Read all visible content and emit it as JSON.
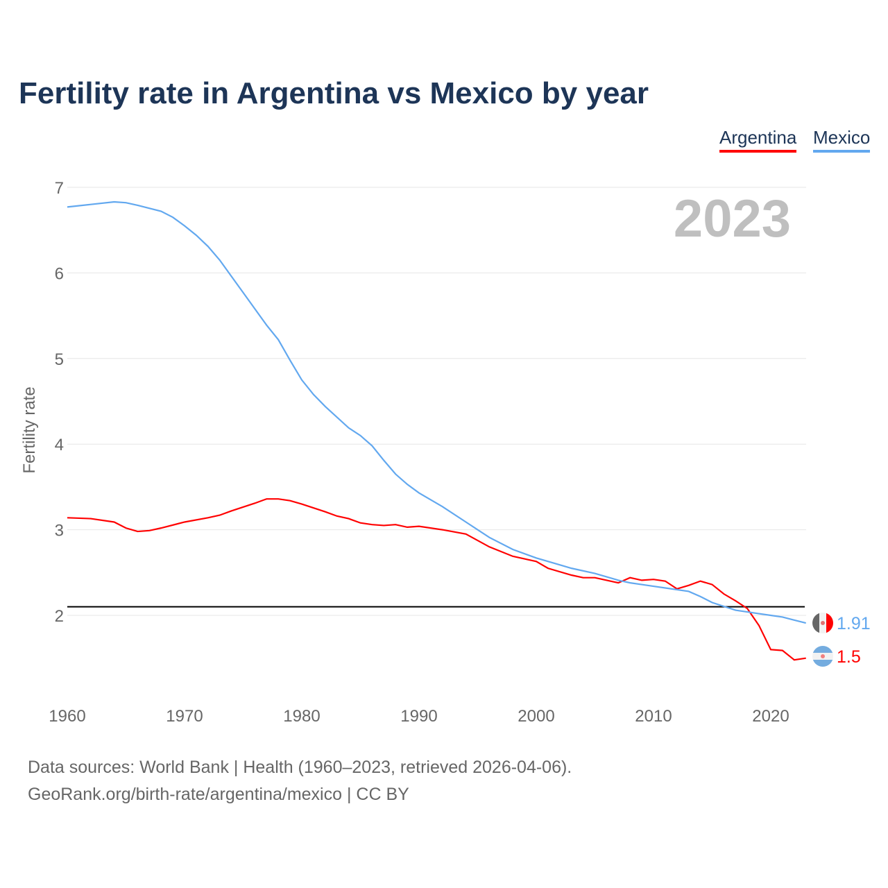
{
  "title": "Fertility rate in Argentina vs Mexico by year",
  "footer": {
    "line1": "Data sources: World Bank | Health (1960–2023, retrieved 2026-04-06).",
    "line2": "GeoRank.org/birth-rate/argentina/mexico | CC BY"
  },
  "chart_data": {
    "type": "line",
    "title": "Fertility rate in Argentina vs Mexico by year",
    "ylabel": "Fertility rate",
    "xlabel": "",
    "xlim": [
      1960,
      2023
    ],
    "ylim": [
      1,
      7
    ],
    "xticks": [
      "1960",
      "1970",
      "1980",
      "1990",
      "2000",
      "2010",
      "2020"
    ],
    "yticks": [
      "2",
      "3",
      "4",
      "5",
      "6",
      "7"
    ],
    "year_label": "2023",
    "reference_line": 2.1,
    "legend_position": "top-right",
    "series": [
      {
        "name": "Argentina",
        "color": "#ff0000",
        "end_label": "1.5",
        "flag": "argentina-flag-icon",
        "points": [
          [
            1960,
            3.14
          ],
          [
            1962,
            3.13
          ],
          [
            1964,
            3.09
          ],
          [
            1965,
            3.02
          ],
          [
            1966,
            2.98
          ],
          [
            1967,
            2.99
          ],
          [
            1968,
            3.02
          ],
          [
            1970,
            3.09
          ],
          [
            1972,
            3.14
          ],
          [
            1973,
            3.17
          ],
          [
            1974,
            3.22
          ],
          [
            1976,
            3.31
          ],
          [
            1977,
            3.36
          ],
          [
            1978,
            3.36
          ],
          [
            1979,
            3.34
          ],
          [
            1980,
            3.3
          ],
          [
            1982,
            3.21
          ],
          [
            1983,
            3.16
          ],
          [
            1984,
            3.13
          ],
          [
            1985,
            3.08
          ],
          [
            1986,
            3.06
          ],
          [
            1987,
            3.05
          ],
          [
            1988,
            3.06
          ],
          [
            1989,
            3.03
          ],
          [
            1990,
            3.04
          ],
          [
            1992,
            3.0
          ],
          [
            1994,
            2.95
          ],
          [
            1996,
            2.8
          ],
          [
            1998,
            2.69
          ],
          [
            1999,
            2.66
          ],
          [
            2000,
            2.63
          ],
          [
            2001,
            2.55
          ],
          [
            2003,
            2.47
          ],
          [
            2004,
            2.44
          ],
          [
            2005,
            2.44
          ],
          [
            2007,
            2.38
          ],
          [
            2008,
            2.44
          ],
          [
            2009,
            2.41
          ],
          [
            2010,
            2.42
          ],
          [
            2011,
            2.4
          ],
          [
            2012,
            2.31
          ],
          [
            2013,
            2.35
          ],
          [
            2014,
            2.4
          ],
          [
            2015,
            2.36
          ],
          [
            2016,
            2.25
          ],
          [
            2017,
            2.17
          ],
          [
            2018,
            2.08
          ],
          [
            2019,
            1.88
          ],
          [
            2020,
            1.6
          ],
          [
            2021,
            1.59
          ],
          [
            2022,
            1.48
          ],
          [
            2023,
            1.5
          ]
        ]
      },
      {
        "name": "Mexico",
        "color": "#62a8ef",
        "end_label": "1.91",
        "flag": "mexico-flag-icon",
        "points": [
          [
            1960,
            6.77
          ],
          [
            1962,
            6.8
          ],
          [
            1964,
            6.83
          ],
          [
            1965,
            6.82
          ],
          [
            1966,
            6.79
          ],
          [
            1968,
            6.72
          ],
          [
            1969,
            6.65
          ],
          [
            1970,
            6.55
          ],
          [
            1971,
            6.44
          ],
          [
            1972,
            6.31
          ],
          [
            1973,
            6.15
          ],
          [
            1974,
            5.96
          ],
          [
            1975,
            5.77
          ],
          [
            1976,
            5.58
          ],
          [
            1977,
            5.39
          ],
          [
            1978,
            5.22
          ],
          [
            1979,
            4.98
          ],
          [
            1980,
            4.75
          ],
          [
            1981,
            4.58
          ],
          [
            1982,
            4.44
          ],
          [
            1984,
            4.19
          ],
          [
            1985,
            4.1
          ],
          [
            1986,
            3.98
          ],
          [
            1987,
            3.81
          ],
          [
            1988,
            3.65
          ],
          [
            1989,
            3.53
          ],
          [
            1990,
            3.43
          ],
          [
            1991,
            3.35
          ],
          [
            1992,
            3.27
          ],
          [
            1994,
            3.09
          ],
          [
            1996,
            2.91
          ],
          [
            1998,
            2.77
          ],
          [
            2000,
            2.67
          ],
          [
            2002,
            2.59
          ],
          [
            2003,
            2.55
          ],
          [
            2005,
            2.49
          ],
          [
            2007,
            2.41
          ],
          [
            2008,
            2.38
          ],
          [
            2009,
            2.36
          ],
          [
            2010,
            2.34
          ],
          [
            2011,
            2.32
          ],
          [
            2013,
            2.28
          ],
          [
            2014,
            2.22
          ],
          [
            2015,
            2.15
          ],
          [
            2017,
            2.06
          ],
          [
            2019,
            2.02
          ],
          [
            2020,
            2.0
          ],
          [
            2021,
            1.98
          ],
          [
            2023,
            1.91
          ]
        ]
      }
    ]
  }
}
